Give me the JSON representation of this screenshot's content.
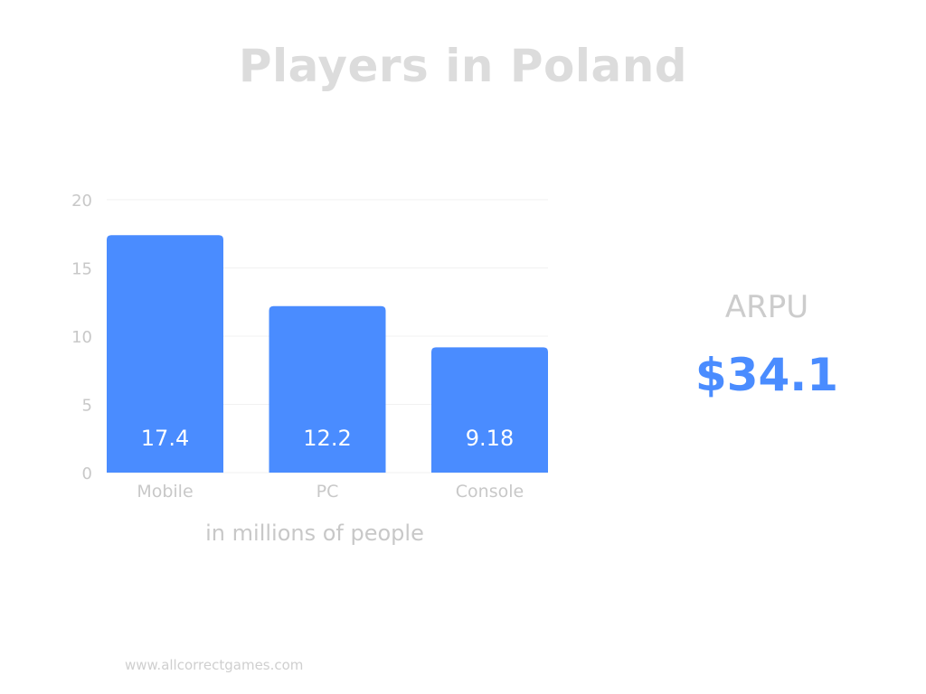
{
  "title": "Players in Poland",
  "caption": "in millions of people",
  "arpu": {
    "label": "ARPU",
    "value": "$34.1"
  },
  "footer": "www.allcorrectgames.com",
  "colors": {
    "bar": "#4a8cff",
    "accent": "#4a8cff",
    "muted_text": "#cccccc",
    "grid": "#f1f1f1"
  },
  "chart_data": {
    "type": "bar",
    "categories": [
      "Mobile",
      "PC",
      "Console"
    ],
    "values": [
      17.4,
      12.2,
      9.18
    ],
    "value_labels": [
      "17.4",
      "12.2",
      "9.18"
    ],
    "ylim": [
      0,
      20
    ],
    "yticks": [
      0,
      5,
      10,
      15,
      20
    ],
    "grid": true,
    "legend": "none"
  }
}
